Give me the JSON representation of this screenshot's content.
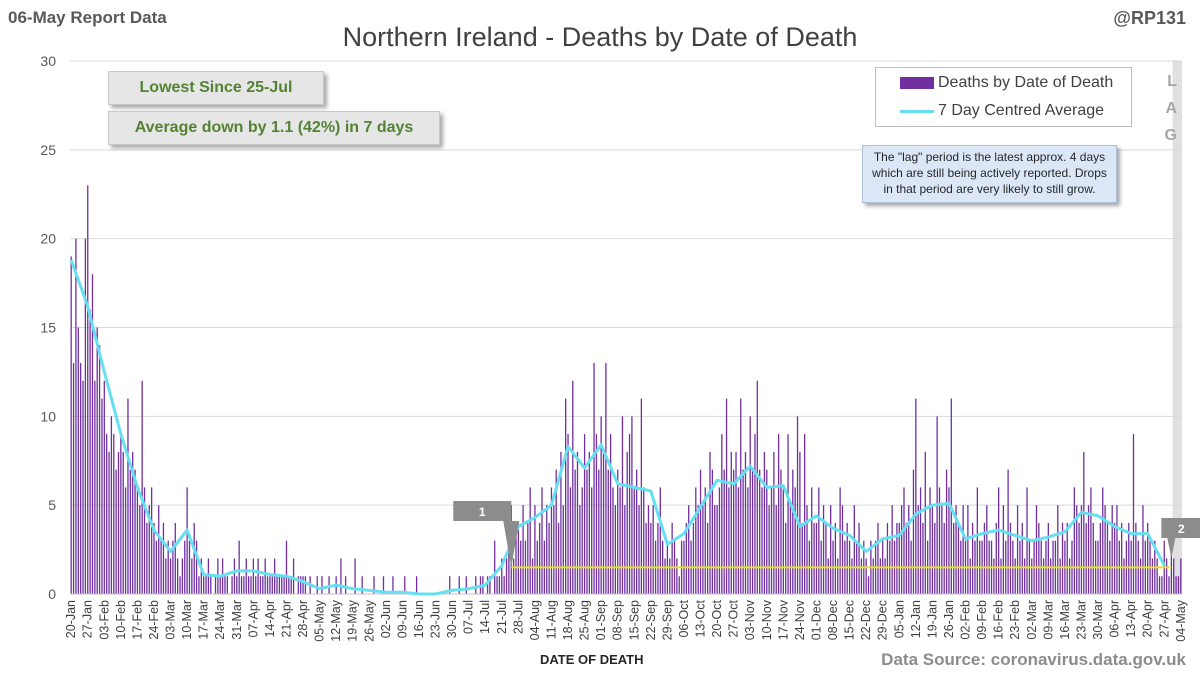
{
  "header": {
    "report_label": "06-May Report Data",
    "handle": "@RP131",
    "title": "Northern Ireland - Deaths by Date of Death"
  },
  "callouts": {
    "lowest": "Lowest Since 25-Jul",
    "average": "Average down by 1.1 (42%) in 7 days"
  },
  "legend": {
    "bar_label": "Deaths by Date of Death",
    "line_label": "7 Day Centred Average"
  },
  "lag_note": "The \"lag\" period is the latest approx. 4 days which are still being actively reported. Drops in that period are very likely to still grow.",
  "lag_letters": [
    "L",
    "A",
    "G"
  ],
  "markers": [
    "1",
    "2"
  ],
  "footer": {
    "x_axis_title": "DATE OF DEATH",
    "source": "Data Source: coronavirus.data.gov.uk"
  },
  "colors": {
    "bars": "#7030a0",
    "average_line": "#66e0f0",
    "reference_line": "#e8e020",
    "grid": "#d9d9d9",
    "lag_band": "#e0e0e0"
  },
  "chart_data": {
    "type": "bar",
    "title": "Northern Ireland - Deaths by Date of Death",
    "xlabel": "DATE OF DEATH",
    "ylabel": "",
    "ylim": [
      0,
      30
    ],
    "yticks": [
      0,
      5,
      10,
      15,
      20,
      25,
      30
    ],
    "grid": true,
    "legend_position": "top-right",
    "x_tick_labels": [
      "20-Jan",
      "27-Jan",
      "03-Feb",
      "10-Feb",
      "17-Feb",
      "24-Feb",
      "03-Mar",
      "10-Mar",
      "17-Mar",
      "24-Mar",
      "31-Mar",
      "07-Apr",
      "14-Apr",
      "21-Apr",
      "28-Apr",
      "05-May",
      "12-May",
      "19-May",
      "26-May",
      "02-Jun",
      "09-Jun",
      "16-Jun",
      "23-Jun",
      "30-Jun",
      "07-Jul",
      "14-Jul",
      "21-Jul",
      "28-Jul",
      "04-Aug",
      "11-Aug",
      "18-Aug",
      "25-Aug",
      "01-Sep",
      "08-Sep",
      "15-Sep",
      "22-Sep",
      "29-Sep",
      "06-Oct",
      "13-Oct",
      "20-Oct",
      "27-Oct",
      "03-Nov",
      "10-Nov",
      "17-Nov",
      "24-Nov",
      "01-Dec",
      "08-Dec",
      "15-Dec",
      "22-Dec",
      "29-Dec",
      "05-Jan",
      "12-Jan",
      "19-Jan",
      "26-Jan",
      "02-Feb",
      "09-Feb",
      "16-Feb",
      "23-Feb",
      "02-Mar",
      "09-Mar",
      "16-Mar",
      "23-Mar",
      "30-Mar",
      "06-Apr",
      "13-Apr",
      "20-Apr",
      "27-Apr",
      "04-May"
    ],
    "series": [
      {
        "name": "Deaths by Date of Death",
        "type": "bar",
        "values_by_week": [
          [
            19,
            13,
            20,
            15,
            13,
            12,
            20
          ],
          [
            23,
            16,
            18,
            12,
            15,
            14,
            11
          ],
          [
            12,
            9,
            8,
            10,
            9,
            7,
            8
          ],
          [
            9,
            8,
            6,
            11,
            7,
            8,
            7
          ],
          [
            6,
            5,
            12,
            6,
            4,
            5,
            6
          ],
          [
            4,
            3,
            5,
            3,
            4,
            2,
            3
          ],
          [
            2,
            3,
            4,
            2,
            1,
            2,
            3
          ],
          [
            6,
            3,
            2,
            4,
            3,
            1,
            2
          ],
          [
            1,
            1,
            2,
            1,
            0,
            1,
            2
          ],
          [
            1,
            2,
            1,
            1,
            0,
            1,
            2
          ],
          [
            1,
            3,
            1,
            1,
            2,
            1,
            1
          ],
          [
            2,
            1,
            2,
            1,
            1,
            2,
            1
          ],
          [
            1,
            1,
            2,
            1,
            1,
            1,
            1
          ],
          [
            3,
            1,
            1,
            2,
            0,
            1,
            1
          ],
          [
            1,
            1,
            0,
            1,
            0,
            0,
            1
          ],
          [
            0,
            1,
            0,
            0,
            1,
            0,
            0
          ],
          [
            1,
            0,
            2,
            0,
            1,
            0,
            0
          ],
          [
            0,
            2,
            0,
            0,
            1,
            0,
            0
          ],
          [
            0,
            0,
            1,
            0,
            0,
            0,
            1
          ],
          [
            0,
            0,
            0,
            1,
            0,
            0,
            0
          ],
          [
            0,
            1,
            0,
            0,
            0,
            0,
            1
          ],
          [
            0,
            0,
            0,
            0,
            0,
            0,
            0
          ],
          [
            0,
            0,
            0,
            0,
            0,
            0,
            1
          ],
          [
            0,
            0,
            0,
            1,
            0,
            0,
            1
          ],
          [
            0,
            0,
            0,
            1,
            0,
            1,
            1
          ],
          [
            0,
            1,
            1,
            0,
            3,
            1,
            1
          ],
          [
            2,
            1,
            2,
            3,
            5,
            2,
            4
          ],
          [
            4,
            3,
            5,
            3,
            4,
            6,
            2
          ],
          [
            5,
            3,
            4,
            6,
            3,
            5,
            4
          ],
          [
            6,
            5,
            7,
            4,
            8,
            5,
            11
          ],
          [
            9,
            6,
            12,
            7,
            8,
            5,
            6
          ],
          [
            9,
            7,
            8,
            6,
            13,
            9,
            7
          ],
          [
            10,
            8,
            13,
            7,
            9,
            6,
            5
          ],
          [
            7,
            6,
            10,
            5,
            8,
            9,
            10
          ],
          [
            6,
            7,
            5,
            11,
            6,
            4,
            5
          ],
          [
            4,
            5,
            3,
            4,
            6,
            3,
            2
          ],
          [
            3,
            2,
            4,
            3,
            2,
            1,
            3
          ],
          [
            3,
            4,
            5,
            3,
            4,
            6,
            5
          ],
          [
            7,
            5,
            6,
            4,
            8,
            7,
            5
          ],
          [
            5,
            6,
            9,
            7,
            11,
            6,
            8
          ],
          [
            7,
            8,
            6,
            11,
            7,
            8,
            6
          ],
          [
            10,
            7,
            9,
            12,
            7,
            6,
            8
          ],
          [
            7,
            5,
            6,
            8,
            5,
            9,
            7
          ],
          [
            6,
            4,
            9,
            5,
            7,
            6,
            10
          ],
          [
            8,
            4,
            9,
            5,
            3,
            6,
            4
          ],
          [
            4,
            6,
            3,
            5,
            4,
            2,
            5
          ],
          [
            3,
            4,
            2,
            6,
            5,
            3,
            4
          ],
          [
            3,
            2,
            5,
            3,
            4,
            2,
            3
          ],
          [
            2,
            1,
            3,
            2,
            3,
            4,
            2
          ],
          [
            3,
            2,
            4,
            3,
            5,
            3,
            4
          ],
          [
            4,
            5,
            6,
            4,
            5,
            3,
            7
          ],
          [
            11,
            5,
            6,
            4,
            8,
            3,
            6
          ],
          [
            5,
            4,
            10,
            6,
            5,
            4,
            7
          ],
          [
            6,
            11,
            4,
            5,
            4,
            3,
            5
          ],
          [
            3,
            5,
            2,
            4,
            3,
            6,
            3
          ],
          [
            3,
            4,
            5,
            3,
            3,
            2,
            4
          ],
          [
            6,
            2,
            5,
            3,
            7,
            4,
            3
          ],
          [
            2,
            5,
            3,
            4,
            2,
            6,
            3
          ],
          [
            2,
            3,
            5,
            4,
            3,
            2,
            3
          ],
          [
            4,
            2,
            3,
            3,
            5,
            2,
            4
          ],
          [
            3,
            4,
            2,
            3,
            6,
            5,
            4
          ],
          [
            5,
            8,
            4,
            5,
            6,
            4,
            3
          ],
          [
            3,
            4,
            6,
            5,
            4,
            3,
            5
          ],
          [
            4,
            5,
            3,
            4,
            2,
            3,
            4
          ],
          [
            3,
            9,
            4,
            3,
            2,
            5,
            3
          ],
          [
            4,
            3,
            2,
            3,
            2,
            1,
            1
          ],
          [
            3,
            2,
            1,
            3,
            2,
            1,
            1
          ],
          [
            2
          ]
        ]
      },
      {
        "name": "7 Day Centred Average",
        "type": "line",
        "weekly_points": [
          [
            "20-Jan",
            18.8
          ],
          [
            "27-Jan",
            16.2
          ],
          [
            "03-Feb",
            12.5
          ],
          [
            "10-Feb",
            9.0
          ],
          [
            "17-Feb",
            6.0
          ],
          [
            "24-Feb",
            3.6
          ],
          [
            "03-Mar",
            2.4
          ],
          [
            "10-Mar",
            3.6
          ],
          [
            "17-Mar",
            1.1
          ],
          [
            "24-Mar",
            1.0
          ],
          [
            "31-Mar",
            1.3
          ],
          [
            "07-Apr",
            1.3
          ],
          [
            "14-Apr",
            1.1
          ],
          [
            "21-Apr",
            1.0
          ],
          [
            "28-Apr",
            0.7
          ],
          [
            "05-May",
            0.3
          ],
          [
            "12-May",
            0.5
          ],
          [
            "19-May",
            0.3
          ],
          [
            "26-May",
            0.2
          ],
          [
            "02-Jun",
            0.1
          ],
          [
            "09-Jun",
            0.1
          ],
          [
            "16-Jun",
            0.0
          ],
          [
            "23-Jun",
            0.0
          ],
          [
            "30-Jun",
            0.2
          ],
          [
            "07-Jul",
            0.3
          ],
          [
            "14-Jul",
            0.5
          ],
          [
            "21-Jul",
            1.6
          ],
          [
            "28-Jul",
            3.8
          ],
          [
            "04-Aug",
            4.3
          ],
          [
            "11-Aug",
            5.0
          ],
          [
            "18-Aug",
            8.3
          ],
          [
            "25-Aug",
            7.1
          ],
          [
            "01-Sep",
            8.4
          ],
          [
            "08-Sep",
            6.2
          ],
          [
            "15-Sep",
            6.0
          ],
          [
            "22-Sep",
            5.8
          ],
          [
            "29-Sep",
            2.8
          ],
          [
            "06-Oct",
            3.4
          ],
          [
            "13-Oct",
            4.9
          ],
          [
            "20-Oct",
            6.4
          ],
          [
            "27-Oct",
            6.2
          ],
          [
            "03-Nov",
            7.2
          ],
          [
            "10-Nov",
            6.0
          ],
          [
            "17-Nov",
            6.1
          ],
          [
            "24-Nov",
            3.8
          ],
          [
            "01-Dec",
            4.4
          ],
          [
            "08-Dec",
            3.7
          ],
          [
            "15-Dec",
            3.3
          ],
          [
            "22-Dec",
            2.4
          ],
          [
            "29-Dec",
            3.1
          ],
          [
            "05-Jan",
            3.3
          ],
          [
            "12-Jan",
            4.5
          ],
          [
            "19-Jan",
            5.0
          ],
          [
            "26-Jan",
            5.1
          ],
          [
            "02-Feb",
            3.1
          ],
          [
            "09-Feb",
            3.4
          ],
          [
            "16-Feb",
            3.6
          ],
          [
            "23-Feb",
            3.3
          ],
          [
            "02-Mar",
            3.0
          ],
          [
            "09-Mar",
            3.2
          ],
          [
            "16-Mar",
            3.5
          ],
          [
            "23-Mar",
            4.6
          ],
          [
            "30-Mar",
            4.4
          ],
          [
            "06-Apr",
            3.8
          ],
          [
            "13-Apr",
            3.4
          ],
          [
            "20-Apr",
            3.4
          ],
          [
            "27-Apr",
            1.6
          ]
        ]
      }
    ],
    "reference_line": {
      "start": "25-Jul",
      "value": 1.5
    },
    "lag_period": {
      "start": "01-May",
      "end": "04-May"
    },
    "annotations": [
      {
        "label": "1",
        "date": "25-Jul"
      },
      {
        "label": "2",
        "date": "30-Apr"
      }
    ]
  }
}
